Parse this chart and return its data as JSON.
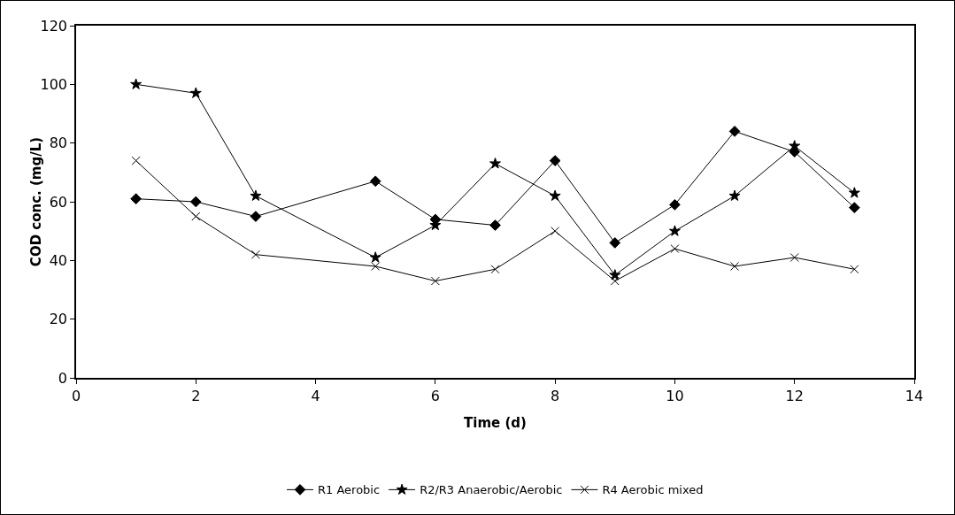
{
  "chart_data": {
    "type": "line",
    "xlabel": "Time (d)",
    "ylabel": "COD conc. (mg/L)",
    "x": [
      1,
      2,
      3,
      5,
      6,
      7,
      8,
      9,
      10,
      11,
      12,
      13
    ],
    "series": [
      {
        "name": "R1 Aerobic",
        "color": "#000000",
        "marker": "diamond",
        "values": [
          61,
          60,
          55,
          67,
          54,
          52,
          74,
          46,
          59,
          84,
          77,
          58
        ]
      },
      {
        "name": "R2/R3 Anaerobic/Aerobic",
        "color": "#000000",
        "marker": "star",
        "values": [
          100,
          97,
          62,
          41,
          52,
          73,
          62,
          35,
          50,
          62,
          79,
          63
        ]
      },
      {
        "name": "R4 Aerobic mixed",
        "color": "#000000",
        "marker": "cross",
        "values": [
          74,
          55,
          42,
          38,
          33,
          37,
          50,
          33,
          44,
          38,
          41,
          37
        ]
      }
    ],
    "xlim": [
      0,
      14
    ],
    "xticks": [
      0,
      2,
      4,
      6,
      8,
      10,
      12,
      14
    ],
    "ylim": [
      0,
      120
    ],
    "yticks": [
      0,
      20,
      40,
      60,
      80,
      100,
      120
    ],
    "grid": false,
    "legend": "bottom",
    "line_style": "solid"
  }
}
